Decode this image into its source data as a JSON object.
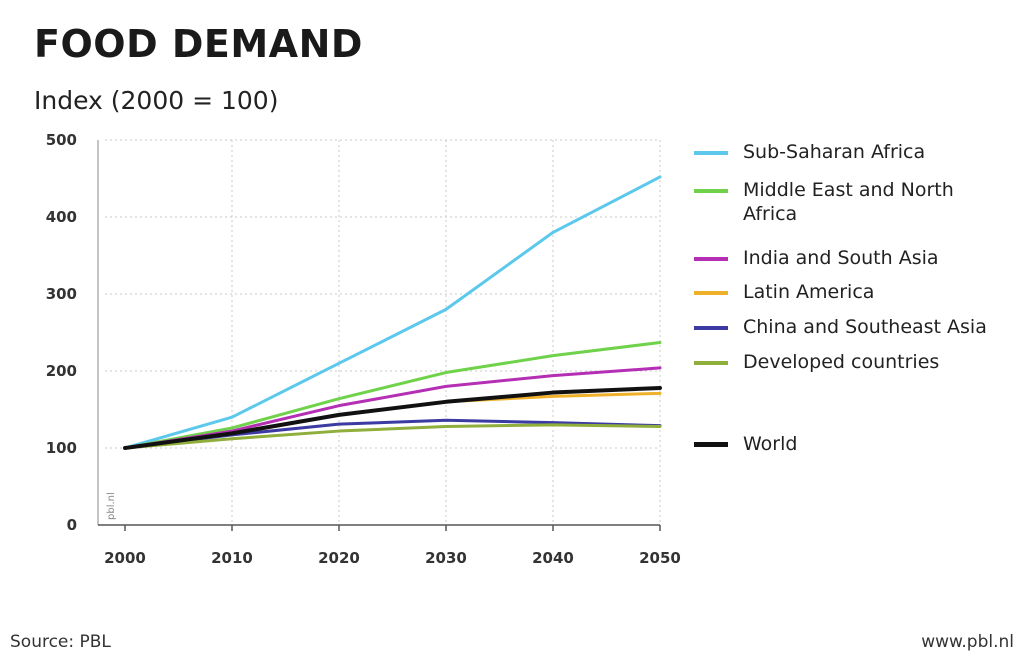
{
  "chart_data": {
    "type": "line",
    "title": "FOOD DEMAND",
    "subtitle": "Index (2000 = 100)",
    "x": [
      2000,
      2010,
      2020,
      2030,
      2040,
      2050
    ],
    "xlim": [
      2000,
      2050
    ],
    "ylim": [
      0,
      500
    ],
    "yticks": [
      0,
      100,
      200,
      300,
      400,
      500
    ],
    "xticks": [
      2000,
      2010,
      2020,
      2030,
      2040,
      2050
    ],
    "grid": true,
    "legend_position": "right",
    "series": [
      {
        "name": "Sub-Saharan Africa",
        "color": "#5bc8ec",
        "values": [
          100,
          140,
          210,
          280,
          380,
          452
        ]
      },
      {
        "name": "Middle East and North Africa",
        "color": "#6fd24a",
        "values": [
          100,
          126,
          164,
          198,
          220,
          237
        ]
      },
      {
        "name": "India and South Asia",
        "color": "#b42fb4",
        "values": [
          100,
          122,
          155,
          180,
          194,
          204
        ]
      },
      {
        "name": "Latin America",
        "color": "#f0b12a",
        "values": [
          100,
          118,
          143,
          160,
          167,
          171
        ]
      },
      {
        "name": "China and Southeast Asia",
        "color": "#3b3ba3",
        "values": [
          100,
          117,
          131,
          136,
          133,
          129
        ]
      },
      {
        "name": "Developed countries",
        "color": "#8fae3b",
        "values": [
          100,
          112,
          122,
          128,
          130,
          128
        ]
      },
      {
        "name": "World",
        "color": "#111111",
        "values": [
          100,
          119,
          143,
          160,
          172,
          178
        ]
      }
    ],
    "watermark": "pbl.nl"
  },
  "footer": {
    "source": "Source: PBL",
    "url": "www.pbl.nl"
  }
}
